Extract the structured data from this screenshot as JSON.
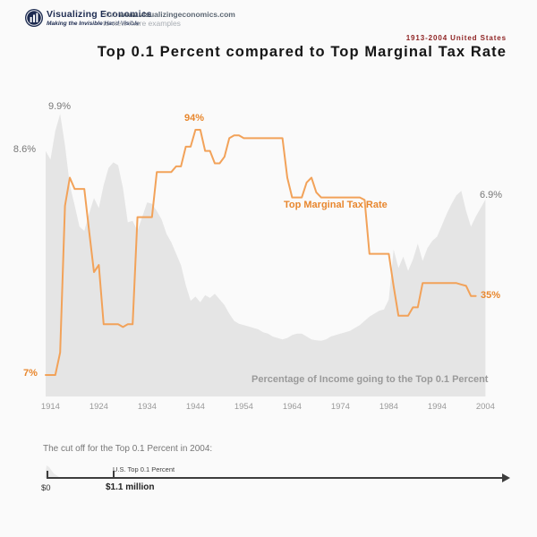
{
  "header": {
    "brand": "Visualizing Economics",
    "tagline": "Making the Invisible Hand Visible",
    "visit_prefix": "Visit ",
    "visit_url": "www.visualizingeconomics.com",
    "visit_line2": "to view more examples",
    "logo_icon": "bar-chart-circle-icon"
  },
  "title_block": {
    "subtitle": "1913-2004 United States",
    "title": "Top 0.1 Percent compared to Top Marginal Tax Rate"
  },
  "chart_data": {
    "type": "area+line combo",
    "x_range": [
      1913,
      2004
    ],
    "x_label_ticks": [
      1914,
      1924,
      1934,
      1944,
      1954,
      1964,
      1974,
      1984,
      1994,
      2004
    ],
    "grid": false,
    "legend": "inline-labels",
    "series": [
      {
        "name": "Top Marginal Tax Rate",
        "type": "line",
        "unit": "percent",
        "color": "#f2a259",
        "ylim": [
          0,
          100
        ],
        "x_start": 1913,
        "values": [
          7,
          7,
          7,
          15,
          67,
          77,
          73,
          73,
          73,
          58,
          43.5,
          46,
          25,
          25,
          25,
          25,
          24,
          25,
          25,
          63,
          63,
          63,
          63,
          79,
          79,
          79,
          79,
          81,
          81,
          88,
          88,
          94,
          94,
          86.5,
          86.5,
          82.1,
          82.1,
          84.4,
          91,
          92,
          92,
          91,
          91,
          91,
          91,
          91,
          91,
          91,
          91,
          91,
          77,
          70,
          70,
          70,
          75.3,
          77,
          71.8,
          70,
          70,
          70,
          70,
          70,
          70,
          70,
          70,
          70,
          69.1,
          50,
          50,
          50,
          50,
          50,
          38.5,
          28,
          28,
          28,
          31,
          31,
          39.6,
          39.6,
          39.6,
          39.6,
          39.6,
          39.6,
          39.6,
          39.6,
          39.1,
          38.6,
          35,
          35
        ]
      },
      {
        "name": "Percentage of Income going to the Top 0.1 Percent",
        "type": "area",
        "unit": "percent",
        "color": "#e5e5e5",
        "ylim": [
          0,
          10
        ],
        "x_start": 1913,
        "values": [
          8.6,
          8.3,
          9.3,
          9.9,
          8.8,
          7.4,
          6.7,
          5.95,
          5.8,
          6.4,
          6.95,
          6.6,
          7.4,
          8.0,
          8.2,
          8.1,
          7.3,
          6.1,
          6.15,
          5.8,
          6.3,
          6.8,
          6.75,
          6.5,
          6.2,
          5.7,
          5.4,
          5.0,
          4.6,
          3.9,
          3.35,
          3.5,
          3.3,
          3.55,
          3.45,
          3.6,
          3.4,
          3.2,
          2.9,
          2.65,
          2.55,
          2.5,
          2.45,
          2.4,
          2.35,
          2.25,
          2.2,
          2.1,
          2.05,
          2.0,
          2.05,
          2.15,
          2.2,
          2.2,
          2.1,
          2.0,
          1.97,
          1.95,
          2.0,
          2.1,
          2.15,
          2.2,
          2.25,
          2.3,
          2.4,
          2.5,
          2.65,
          2.8,
          2.9,
          3.0,
          3.05,
          3.4,
          5.15,
          4.5,
          4.9,
          4.4,
          4.8,
          5.35,
          4.75,
          5.2,
          5.45,
          5.6,
          6.0,
          6.4,
          6.75,
          7.05,
          7.2,
          6.5,
          5.95,
          6.3,
          6.6,
          6.9
        ]
      }
    ],
    "annotations": {
      "area_start": "8.6%",
      "area_peak": "9.9%",
      "area_end": "6.9%",
      "line_start": "7%",
      "line_peak": "94%",
      "line_end": "35%",
      "line_series_label": "Top Marginal Tax Rate",
      "area_series_label": "Percentage of Income going to the Top 0.1 Percent"
    }
  },
  "footer": {
    "caption": "The cut off for the Top 0.1 Percent in 2004:",
    "axis_start_label": "$0",
    "cutoff_label": "$1.1 million",
    "cutoff_group_label": "U.S. Top 0.1 Percent",
    "arrow_icon": "axis-arrow-right-icon",
    "distribution_icon": "income-distribution-curve-icon"
  },
  "colors": {
    "tax_line": "#f2a259",
    "tax_label": "#e8872e",
    "income_area": "#e5e5e5",
    "subtitle_red": "#8e2323",
    "brand_navy": "#1d2b50",
    "gray_label": "#777777",
    "axis_dark": "#3d3d3d"
  }
}
